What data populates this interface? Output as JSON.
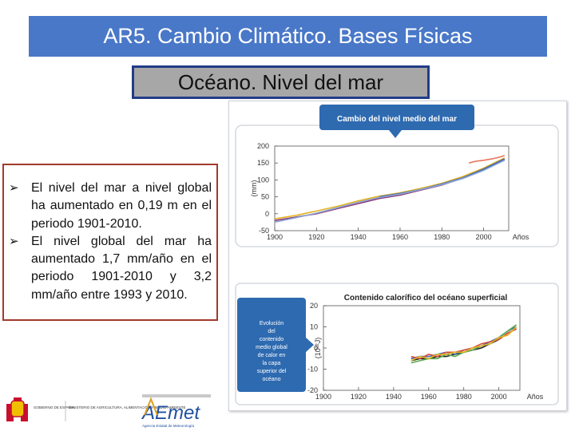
{
  "slide": {
    "title": "AR5. Cambio Climático. Bases Físicas",
    "subtitle": "Océano. Nivel del mar",
    "bullets": [
      "El nivel del mar a nivel global ha aumentado en 0,19 m en el periodo 1901-2010.",
      "El nivel global del mar ha aumentado 1,7 mm/año en el periodo 1901-2010 y 3,2 mm/año entre 1993 y 2010."
    ],
    "bullet_icon": "arrow-bullet-icon"
  },
  "colors": {
    "title_bg": "#4a78c8",
    "subtitle_bg": "#a7a7a7",
    "subtitle_border": "#213c88",
    "text_border": "#a23a2c",
    "banner_bg": "#2e6ab0"
  },
  "chart_data": [
    {
      "type": "line",
      "title": "Cambio del nivel medio del mar",
      "ylabel": "(mm)",
      "xlabel": "Años",
      "xlim": [
        1900,
        2012
      ],
      "ylim": [
        -50,
        200
      ],
      "xticks": [
        1900,
        1920,
        1940,
        1960,
        1980,
        2000
      ],
      "yticks": [
        -50,
        0,
        50,
        100,
        150,
        200
      ],
      "series": [
        {
          "color": "#8a3a7a",
          "x": [
            1900,
            1910,
            1920,
            1930,
            1940,
            1950,
            1960,
            1970,
            1980,
            1990,
            2000,
            2010
          ],
          "values": [
            -20,
            -10,
            0,
            15,
            30,
            45,
            55,
            70,
            85,
            105,
            130,
            160
          ]
        },
        {
          "color": "#e3b21f",
          "x": [
            1900,
            1910,
            1920,
            1930,
            1940,
            1950,
            1960,
            1970,
            1980,
            1990,
            2000,
            2010
          ],
          "values": [
            -15,
            -5,
            8,
            22,
            38,
            52,
            62,
            75,
            90,
            110,
            135,
            165
          ]
        },
        {
          "color": "#3c66b5",
          "x": [
            1950,
            1960,
            1970,
            1980,
            1990,
            2000,
            2010
          ],
          "values": [
            50,
            60,
            72,
            88,
            106,
            132,
            162
          ]
        },
        {
          "color": "#8aa7d6",
          "x": [
            1900,
            1910,
            1920,
            1930,
            1940,
            1950,
            1960,
            1970,
            1980,
            1990,
            2000,
            2010
          ],
          "values": [
            -25,
            -12,
            2,
            18,
            34,
            48,
            58,
            72,
            86,
            104,
            128,
            158
          ]
        },
        {
          "color": "#e8735a",
          "x": [
            1993,
            1996,
            2000,
            2004,
            2008,
            2010
          ],
          "values": [
            150,
            155,
            158,
            162,
            168,
            172
          ]
        }
      ]
    },
    {
      "type": "line",
      "title": "Contenido calorífico del océano superficial",
      "ylabel": "(10²²J)",
      "xlabel": "Años",
      "xlim": [
        1900,
        2012
      ],
      "ylim": [
        -20,
        20
      ],
      "xticks": [
        1900,
        1920,
        1940,
        1960,
        1980,
        2000
      ],
      "yticks": [
        -20,
        -10,
        0,
        10,
        20
      ],
      "side_text": "Evolución del contenido medio global de calor en la capa superior del océano",
      "series": [
        {
          "color": "#222222",
          "x": [
            1950,
            1955,
            1960,
            1965,
            1970,
            1975,
            1980,
            1985,
            1990,
            1995,
            2000,
            2005,
            2010
          ],
          "values": [
            -6,
            -5,
            -5,
            -4,
            -4,
            -3,
            -2,
            -1,
            0,
            2,
            4,
            7,
            9
          ]
        },
        {
          "color": "#3c66b5",
          "x": [
            1950,
            1955,
            1960,
            1965,
            1970,
            1975,
            1980,
            1985,
            1990,
            1995,
            2000,
            2005,
            2010
          ],
          "values": [
            -5,
            -4,
            -4,
            -3,
            -2,
            -3,
            -1,
            0,
            1,
            3,
            5,
            8,
            10
          ]
        },
        {
          "color": "#5aa852",
          "x": [
            1950,
            1955,
            1960,
            1965,
            1970,
            1975,
            1980,
            1985,
            1990,
            1995,
            2000,
            2005,
            2010
          ],
          "values": [
            -7,
            -6,
            -5,
            -5,
            -3,
            -4,
            -2,
            -1,
            1,
            2,
            5,
            8,
            11
          ]
        },
        {
          "color": "#d94c3a",
          "x": [
            1950,
            1955,
            1960,
            1965,
            1970,
            1975,
            1980,
            1985,
            1990,
            1995,
            2000,
            2005,
            2010
          ],
          "values": [
            -4,
            -5,
            -3,
            -4,
            -2,
            -2,
            -1,
            0,
            2,
            3,
            4,
            7,
            9
          ]
        },
        {
          "color": "#e3b21f",
          "x": [
            1950,
            1955,
            1960,
            1965,
            1970,
            1975,
            1980,
            1985,
            1990,
            1995,
            2000,
            2005,
            2010
          ],
          "values": [
            -6,
            -4,
            -5,
            -3,
            -3,
            -2,
            -2,
            0,
            1,
            2,
            5,
            6,
            10
          ]
        }
      ]
    }
  ],
  "logos": {
    "gobierno": "GOBIERNO DE ESPAÑA",
    "ministerio": "MINISTERIO DE AGRICULTURA, ALIMENTACIÓN Y MEDIO AMBIENTE",
    "aemet": "AEmet",
    "aemet_sub": "Agencia Estatal de Meteorología"
  }
}
